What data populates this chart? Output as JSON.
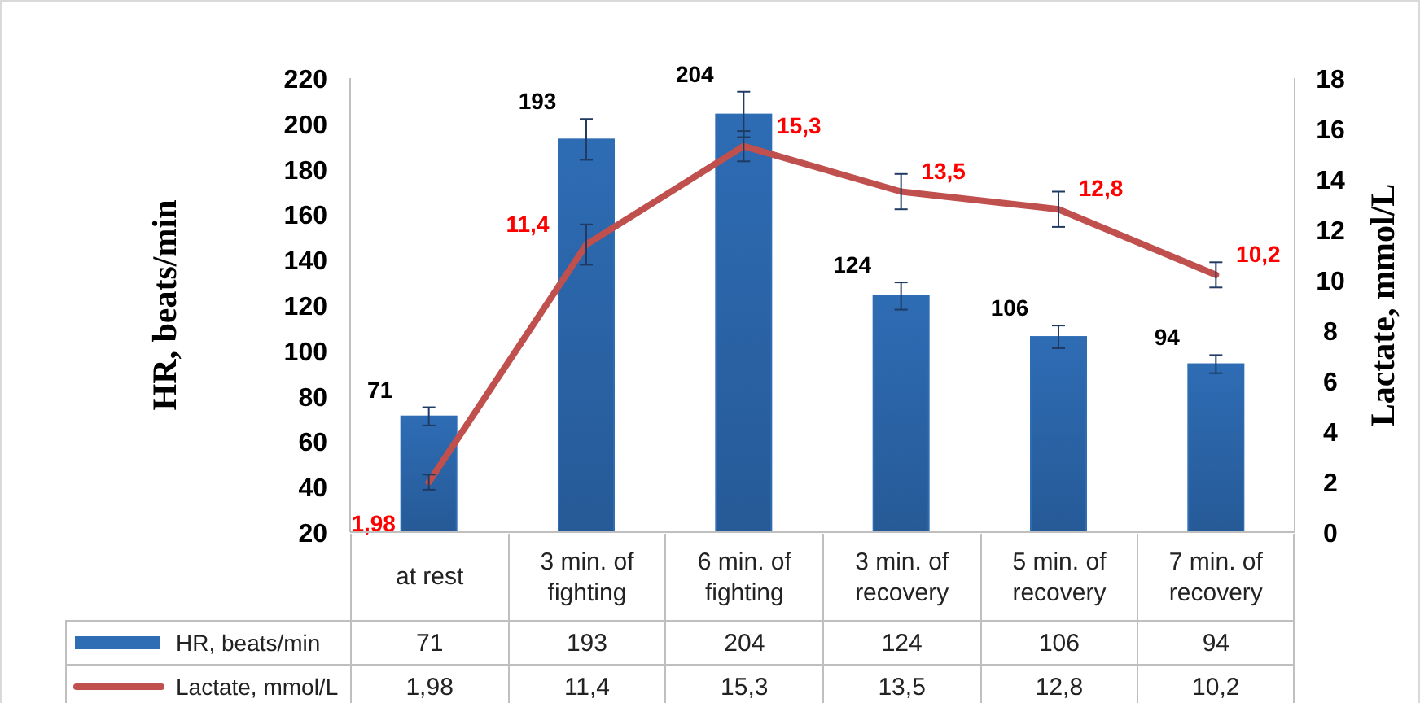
{
  "chart_data": {
    "type": "bar",
    "categories": [
      "at rest",
      "3 min. of fighting",
      "6 min. of fighting",
      "3 min. of recovery",
      "5 min. of recovery",
      "7 min. of recovery"
    ],
    "ylabel": "HR, beats/min",
    "y2label": "Lactate, mmol/L",
    "ylim": [
      20,
      220
    ],
    "yticks": [
      20,
      40,
      60,
      80,
      100,
      120,
      140,
      160,
      180,
      200,
      220
    ],
    "y2lim": [
      0,
      18
    ],
    "y2ticks": [
      0,
      2,
      4,
      6,
      8,
      10,
      12,
      14,
      16,
      18
    ],
    "legend": "bottom",
    "grid": false,
    "series": [
      {
        "name": "HR, beats/min",
        "color": "#2e6cb4",
        "values": [
          71,
          193,
          204,
          124,
          106,
          94
        ],
        "errors": [
          4,
          9,
          10,
          6,
          5,
          4
        ],
        "value_labels": [
          "71",
          "193",
          "204",
          "124",
          "106",
          "94"
        ]
      },
      {
        "name": "Lactate, mmol/L",
        "type": "line",
        "axis": "y2",
        "color": "#c0504d",
        "marker": "none",
        "values": [
          1.98,
          11.4,
          15.3,
          13.5,
          12.8,
          10.2
        ],
        "errors": [
          0.3,
          0.8,
          0.6,
          0.7,
          0.7,
          0.5
        ],
        "value_labels": [
          "1,98",
          "11,4",
          "15,3",
          "13,5",
          "12,8",
          "10,2"
        ]
      }
    ]
  }
}
